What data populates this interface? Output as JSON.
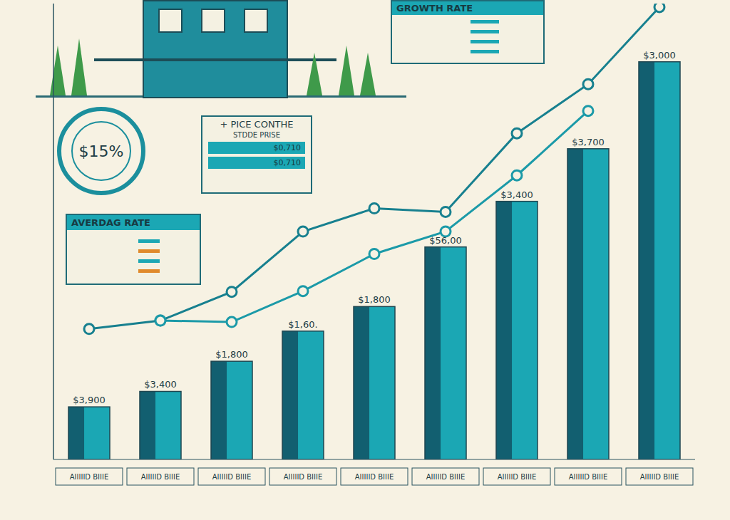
{
  "chart_data": {
    "type": "bar",
    "categories": [
      "AIIIIID BIIIE",
      "AIIIIID BIIIE",
      "AIIIIID BIIIE",
      "AIIIIID BIIIE",
      "AIIIIID BIIIE",
      "AIIIIID BIIIE",
      "AIIIIID BIIIE",
      "AIIIIID BIIIE",
      "AIIIIID BIIIE"
    ],
    "series": [
      {
        "type": "bar",
        "color": "#1ba7b4",
        "values": [
          75,
          97,
          140,
          183,
          218,
          303,
          368,
          443,
          567
        ]
      },
      {
        "type": "line",
        "color": "#17808f",
        "marker": "circle",
        "values": [
          186,
          198,
          239,
          325,
          358,
          353,
          465,
          535,
          645
        ]
      },
      {
        "type": "line",
        "color": "#1b9aa8",
        "marker": "circle",
        "values": [
          null,
          198,
          196,
          240,
          293,
          325,
          405,
          497,
          null
        ]
      }
    ],
    "bar_labels": [
      "$3,900",
      "$3,400",
      "$1,800",
      "$1,60.",
      "$1,800",
      "$56,00",
      "$3,400",
      "$3,700",
      "$3,000"
    ],
    "ylim": [
      0,
      650
    ],
    "yticks": [],
    "tick_labels": "x",
    "grid": false,
    "growth_box": "GROWTH RATE",
    "price_box": {
      "title": "+ PICE CONTHE",
      "subtitle": "STDDE PRISE",
      "values": [
        "$0,710",
        "$0,710"
      ]
    },
    "badge": "$15%",
    "average_box": "AVERDAG RATE"
  }
}
